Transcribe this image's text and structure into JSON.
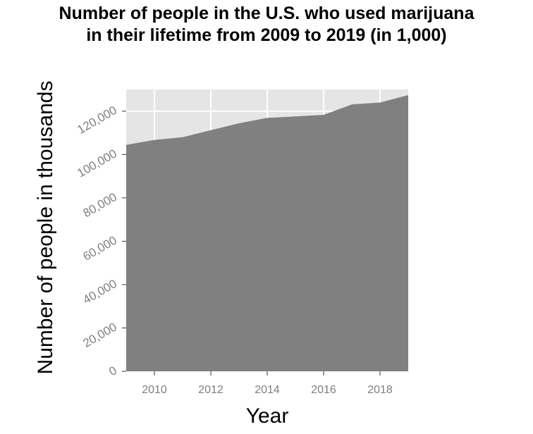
{
  "chart_data": {
    "type": "area",
    "title_lines": [
      "Number of people in the U.S. who used marijuana",
      "in their lifetime from 2009 to 2019 (in 1,000)"
    ],
    "xlabel": "Year",
    "ylabel": "Number of people in thousands",
    "x": [
      2009,
      2010,
      2011,
      2012,
      2013,
      2014,
      2015,
      2016,
      2017,
      2018,
      2019
    ],
    "values": [
      104446,
      106743,
      108004,
      111200,
      114400,
      116900,
      117600,
      118300,
      123100,
      124000,
      127400
    ],
    "xlim": [
      2009,
      2019
    ],
    "ylim": [
      0,
      130000
    ],
    "x_ticks": [
      2010,
      2012,
      2014,
      2016,
      2018
    ],
    "x_tick_labels": [
      "2010",
      "2012",
      "2014",
      "2016",
      "2018"
    ],
    "y_ticks": [
      0,
      20000,
      40000,
      60000,
      80000,
      100000,
      120000
    ],
    "y_tick_labels": [
      "0",
      "20,000",
      "40,000",
      "60,000",
      "80,000",
      "100,000",
      "120,000"
    ],
    "grid": true,
    "colors": {
      "area": "#808080",
      "plot_background": "#e5e5e5",
      "grid": "#ffffff",
      "tick_label": "#7f7f7f"
    }
  }
}
